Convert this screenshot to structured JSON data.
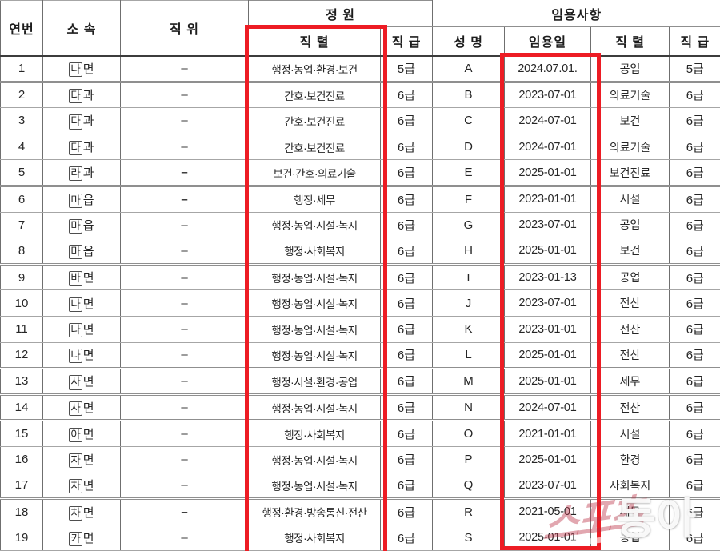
{
  "header": {
    "serial": "연번",
    "affiliation": "소 속",
    "position": "직 위",
    "quota_group": "정 원",
    "appointment_group": "임용사항",
    "quota_series": "직 렬",
    "quota_grade": "직 급",
    "name": "성 명",
    "appoint_date": "임용일",
    "appoint_series": "직 렬",
    "appoint_grade": "직 급"
  },
  "rows": [
    {
      "no": "1",
      "affiliation_boxed": "나",
      "affiliation_suffix": "면",
      "position": "–",
      "position_bold": false,
      "quota_series": "행정·농업·환경·보건",
      "quota_grade": "5급",
      "name": "A",
      "appoint_date": "2024.07.01.",
      "appoint_series": "공업",
      "appoint_grade": "5급",
      "thick_bottom": true
    },
    {
      "no": "2",
      "affiliation_boxed": "다",
      "affiliation_suffix": "과",
      "position": "–",
      "position_bold": false,
      "quota_series": "간호·보건진료",
      "quota_grade": "6급",
      "name": "B",
      "appoint_date": "2023-07-01",
      "appoint_series": "의료기술",
      "appoint_grade": "6급",
      "thick_bottom": false
    },
    {
      "no": "3",
      "affiliation_boxed": "다",
      "affiliation_suffix": "과",
      "position": "–",
      "position_bold": false,
      "quota_series": "간호·보건진료",
      "quota_grade": "6급",
      "name": "C",
      "appoint_date": "2024-07-01",
      "appoint_series": "보건",
      "appoint_grade": "6급",
      "thick_bottom": false
    },
    {
      "no": "4",
      "affiliation_boxed": "다",
      "affiliation_suffix": "과",
      "position": "–",
      "position_bold": false,
      "quota_series": "간호·보건진료",
      "quota_grade": "6급",
      "name": "D",
      "appoint_date": "2024-07-01",
      "appoint_series": "의료기술",
      "appoint_grade": "6급",
      "thick_bottom": false
    },
    {
      "no": "5",
      "affiliation_boxed": "라",
      "affiliation_suffix": "과",
      "position": "–",
      "position_bold": true,
      "quota_series": "보건·간호·의료기술",
      "quota_grade": "6급",
      "name": "E",
      "appoint_date": "2025-01-01",
      "appoint_series": "보건진료",
      "appoint_grade": "6급",
      "thick_bottom": true
    },
    {
      "no": "6",
      "affiliation_boxed": "마",
      "affiliation_suffix": "읍",
      "position": "–",
      "position_bold": true,
      "quota_series": "행정·세무",
      "quota_grade": "6급",
      "name": "F",
      "appoint_date": "2023-01-01",
      "appoint_series": "시설",
      "appoint_grade": "6급",
      "thick_bottom": false
    },
    {
      "no": "7",
      "affiliation_boxed": "마",
      "affiliation_suffix": "읍",
      "position": "–",
      "position_bold": false,
      "quota_series": "행정·농업·시설·녹지",
      "quota_grade": "6급",
      "name": "G",
      "appoint_date": "2023-07-01",
      "appoint_series": "공업",
      "appoint_grade": "6급",
      "thick_bottom": false
    },
    {
      "no": "8",
      "affiliation_boxed": "마",
      "affiliation_suffix": "읍",
      "position": "–",
      "position_bold": false,
      "quota_series": "행정·사회복지",
      "quota_grade": "6급",
      "name": "H",
      "appoint_date": "2025-01-01",
      "appoint_series": "보건",
      "appoint_grade": "6급",
      "thick_bottom": true
    },
    {
      "no": "9",
      "affiliation_boxed": "바",
      "affiliation_suffix": "면",
      "position": "–",
      "position_bold": false,
      "quota_series": "행정·농업·시설·녹지",
      "quota_grade": "6급",
      "name": "I",
      "appoint_date": "2023-01-13",
      "appoint_series": "공업",
      "appoint_grade": "6급",
      "thick_bottom": false
    },
    {
      "no": "10",
      "affiliation_boxed": "나",
      "affiliation_suffix": "면",
      "position": "–",
      "position_bold": false,
      "quota_series": "행정·농업·시설·녹지",
      "quota_grade": "6급",
      "name": "J",
      "appoint_date": "2023-07-01",
      "appoint_series": "전산",
      "appoint_grade": "6급",
      "thick_bottom": false
    },
    {
      "no": "11",
      "affiliation_boxed": "나",
      "affiliation_suffix": "면",
      "position": "–",
      "position_bold": false,
      "quota_series": "행정·농업·시설·녹지",
      "quota_grade": "6급",
      "name": "K",
      "appoint_date": "2023-01-01",
      "appoint_series": "전산",
      "appoint_grade": "6급",
      "thick_bottom": false
    },
    {
      "no": "12",
      "affiliation_boxed": "나",
      "affiliation_suffix": "면",
      "position": "–",
      "position_bold": false,
      "quota_series": "행정·농업·시설·녹지",
      "quota_grade": "6급",
      "name": "L",
      "appoint_date": "2025-01-01",
      "appoint_series": "전산",
      "appoint_grade": "6급",
      "thick_bottom": true
    },
    {
      "no": "13",
      "affiliation_boxed": "사",
      "affiliation_suffix": "면",
      "position": "–",
      "position_bold": false,
      "quota_series": "행정·시설·환경·공업",
      "quota_grade": "6급",
      "name": "M",
      "appoint_date": "2025-01-01",
      "appoint_series": "세무",
      "appoint_grade": "6급",
      "thick_bottom": true
    },
    {
      "no": "14",
      "affiliation_boxed": "사",
      "affiliation_suffix": "면",
      "position": "–",
      "position_bold": false,
      "quota_series": "행정·농업·시설·녹지",
      "quota_grade": "6급",
      "name": "N",
      "appoint_date": "2024-07-01",
      "appoint_series": "전산",
      "appoint_grade": "6급",
      "thick_bottom": true
    },
    {
      "no": "15",
      "affiliation_boxed": "아",
      "affiliation_suffix": "면",
      "position": "–",
      "position_bold": false,
      "quota_series": "행정·사회복지",
      "quota_grade": "6급",
      "name": "O",
      "appoint_date": "2021-01-01",
      "appoint_series": "시설",
      "appoint_grade": "6급",
      "thick_bottom": false
    },
    {
      "no": "16",
      "affiliation_boxed": "자",
      "affiliation_suffix": "면",
      "position": "–",
      "position_bold": false,
      "quota_series": "행정·농업·시설·녹지",
      "quota_grade": "6급",
      "name": "P",
      "appoint_date": "2025-01-01",
      "appoint_series": "환경",
      "appoint_grade": "6급",
      "thick_bottom": false
    },
    {
      "no": "17",
      "affiliation_boxed": "차",
      "affiliation_suffix": "면",
      "position": "–",
      "position_bold": false,
      "quota_series": "행정·농업·시설·녹지",
      "quota_grade": "6급",
      "name": "Q",
      "appoint_date": "2023-07-01",
      "appoint_series": "사회복지",
      "appoint_grade": "6급",
      "thick_bottom": true
    },
    {
      "no": "18",
      "affiliation_boxed": "차",
      "affiliation_suffix": "면",
      "position": "–",
      "position_bold": true,
      "quota_series": "행정·환경·방송통신·전산",
      "quota_grade": "6급",
      "name": "R",
      "appoint_date": "2021-05-01",
      "appoint_series": "세무",
      "appoint_grade": "6급",
      "thick_bottom": false
    },
    {
      "no": "19",
      "affiliation_boxed": "카",
      "affiliation_suffix": "면",
      "position": "–",
      "position_bold": false,
      "quota_series": "행정·사회복지",
      "quota_grade": "6급",
      "name": "S",
      "appoint_date": "2025-01-01",
      "appoint_series": "농업",
      "appoint_grade": "6급",
      "thick_bottom": false
    }
  ],
  "highlights": {
    "color": "#ed1c24"
  },
  "watermark": {
    "script": "스포츠",
    "wordmark": "동아"
  }
}
